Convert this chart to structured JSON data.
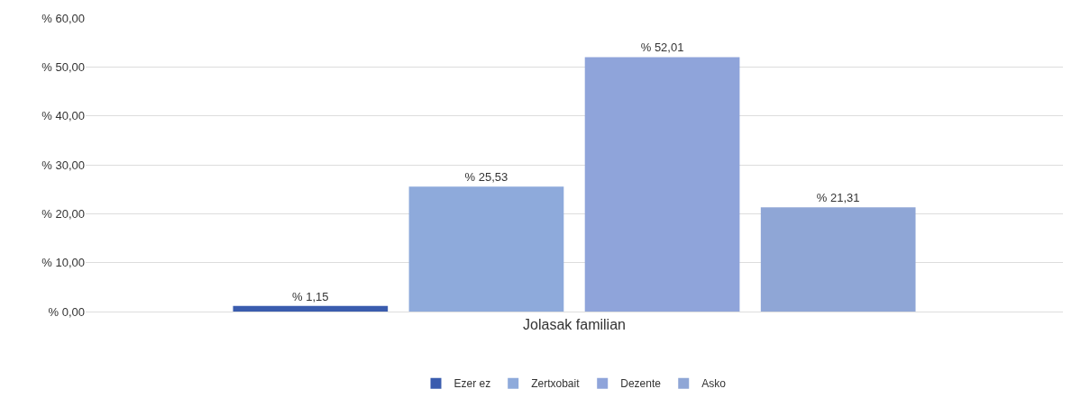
{
  "chart_data": {
    "type": "bar",
    "categories": [
      "Jolasak familian"
    ],
    "series": [
      {
        "name": "Ezer ez",
        "color": "#3a5cae",
        "values": [
          1.15
        ],
        "value_labels": [
          "% 1,15"
        ]
      },
      {
        "name": "Zertxobait",
        "color": "#8eaadb",
        "values": [
          25.53
        ],
        "value_labels": [
          "% 25,53"
        ]
      },
      {
        "name": "Dezente",
        "color": "#8fa4da",
        "values": [
          52.01
        ],
        "value_labels": [
          "% 52,01"
        ]
      },
      {
        "name": "Asko",
        "color": "#8fa6d6",
        "values": [
          21.31
        ],
        "value_labels": [
          "% 21,31"
        ]
      }
    ],
    "ylim": [
      0,
      60
    ],
    "yticks": [
      {
        "value": 0,
        "label": "% 0,00"
      },
      {
        "value": 10,
        "label": "% 10,00"
      },
      {
        "value": 20,
        "label": "% 20,00"
      },
      {
        "value": 30,
        "label": "% 30,00"
      },
      {
        "value": 40,
        "label": "% 40,00"
      },
      {
        "value": 50,
        "label": "% 50,00"
      },
      {
        "value": 60,
        "label": "% 60,00"
      }
    ],
    "grid": "y",
    "legend": "bottom"
  }
}
